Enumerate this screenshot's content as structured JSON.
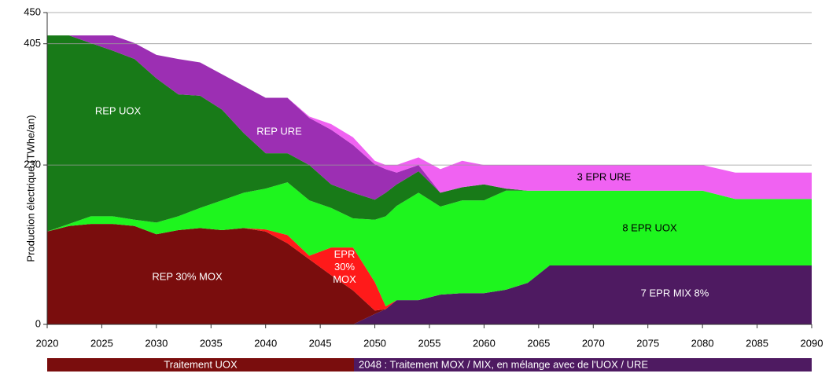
{
  "chart_data": {
    "type": "area",
    "stacked": true,
    "y_label": "Production électrique (TWhe/an)",
    "x": [
      2020,
      2022,
      2024,
      2026,
      2028,
      2030,
      2032,
      2034,
      2036,
      2038,
      2040,
      2042,
      2044,
      2046,
      2048,
      2050,
      2051,
      2052,
      2054,
      2056,
      2058,
      2060,
      2062,
      2064,
      2066,
      2070,
      2075,
      2080,
      2083,
      2085,
      2090
    ],
    "series": [
      {
        "name": "7 EPR MIX 8%",
        "color": "#4e1a61",
        "values": [
          0,
          0,
          0,
          0,
          0,
          0,
          0,
          0,
          0,
          0,
          0,
          0,
          0,
          0,
          0,
          15,
          22,
          35,
          35,
          43,
          45,
          45,
          50,
          60,
          85,
          85,
          85,
          85,
          85,
          85,
          85
        ]
      },
      {
        "name": "REP 30% MOX",
        "color": "#7a0d0d",
        "values": [
          134,
          142,
          145,
          145,
          142,
          130,
          136,
          139,
          136,
          139,
          134,
          117,
          94,
          71,
          49,
          5,
          0,
          0,
          0,
          0,
          0,
          0,
          0,
          0,
          0,
          0,
          0,
          0,
          0,
          0,
          0
        ]
      },
      {
        "name": "EPR 30% MOX",
        "color": "#ff1a1a",
        "values": [
          0,
          0,
          0,
          0,
          0,
          0,
          0,
          0,
          0,
          0,
          3,
          12,
          5,
          40,
          62,
          41,
          4,
          0,
          0,
          0,
          0,
          0,
          0,
          0,
          0,
          0,
          0,
          0,
          0,
          0,
          0
        ]
      },
      {
        "name": "8 EPR UOX",
        "color": "#1ef51e",
        "values": [
          0,
          3,
          11,
          11,
          9,
          17,
          20,
          29,
          43,
          51,
          59,
          76,
          80,
          57,
          42,
          90,
          130,
          136,
          155,
          127,
          134,
          134,
          143,
          133,
          108,
          108,
          108,
          108,
          96,
          96,
          96
        ]
      },
      {
        "name": "REP UOX",
        "color": "#187a18",
        "values": [
          283,
          272,
          250,
          239,
          232,
          208,
          176,
          162,
          131,
          86,
          51,
          42,
          51,
          34,
          37,
          29,
          34,
          31,
          31,
          20,
          19,
          23,
          3,
          0,
          0,
          0,
          0,
          0,
          0,
          0,
          0
        ]
      },
      {
        "name": "REP URE",
        "color": "#9c2fb3",
        "values": [
          0,
          0,
          11,
          22,
          23,
          34,
          51,
          48,
          51,
          68,
          80,
          80,
          68,
          79,
          69,
          51,
          34,
          17,
          9,
          0,
          0,
          0,
          0,
          0,
          0,
          0,
          0,
          0,
          0,
          0,
          0
        ]
      },
      {
        "name": "3 EPR URE",
        "color": "#f062f2",
        "values": [
          0,
          0,
          0,
          0,
          0,
          0,
          0,
          0,
          0,
          0,
          0,
          0,
          2,
          8,
          11,
          5,
          6,
          11,
          11,
          34,
          38,
          28,
          34,
          37,
          37,
          37,
          37,
          37,
          38,
          38,
          38
        ]
      }
    ],
    "xlim": [
      2020,
      2090
    ],
    "xticks": [
      2020,
      2025,
      2030,
      2035,
      2040,
      2045,
      2050,
      2055,
      2060,
      2065,
      2070,
      2075,
      2080,
      2085,
      2090
    ],
    "ylim": [
      0,
      450
    ],
    "yticks": [
      0,
      230,
      405,
      450
    ],
    "phases": [
      {
        "label": "Traitement UOX",
        "color": "#7a0d0d"
      },
      {
        "label": "2048 : Traitement MOX / MIX, en mélange avec de l'UOX / URE",
        "color": "#4e1a61"
      }
    ]
  }
}
